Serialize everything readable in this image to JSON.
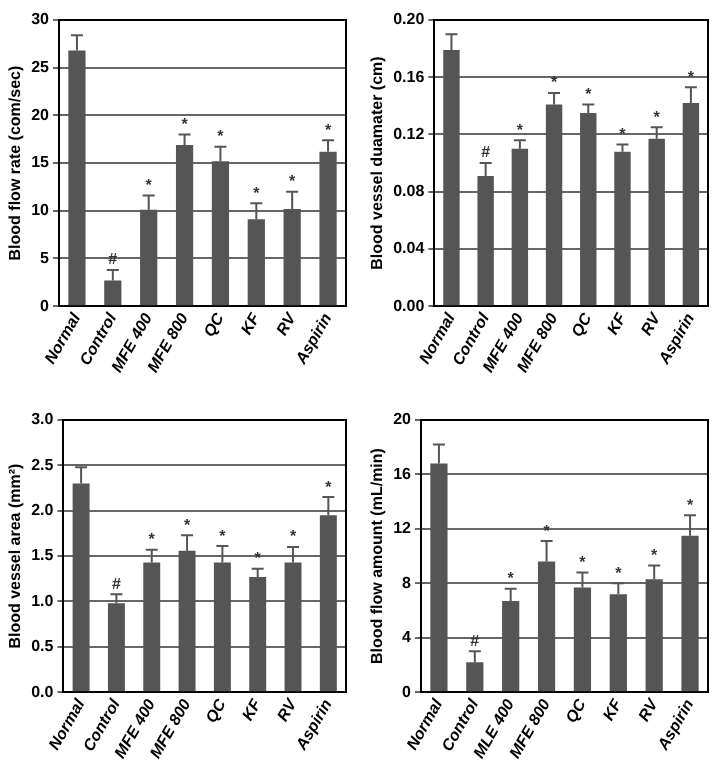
{
  "chart_data": [
    {
      "type": "bar",
      "ylabel": "Blood flow rate (com/sec)",
      "categories": [
        "Normal",
        "Control",
        "MFE 400",
        "MFE 800",
        "QC",
        "KF",
        "RV",
        "Aspirin"
      ],
      "values": [
        26.8,
        2.7,
        10.1,
        16.9,
        15.2,
        9.1,
        10.2,
        16.2
      ],
      "color": "#555555",
      "errors": [
        [
          26.8,
          28.4
        ],
        [
          2.7,
          3.8
        ],
        [
          10.1,
          11.6
        ],
        [
          16.9,
          18.0
        ],
        [
          15.2,
          16.7
        ],
        [
          9.1,
          10.8
        ],
        [
          10.2,
          12.0
        ],
        [
          16.2,
          17.4
        ]
      ],
      "ylim": [
        0,
        30
      ],
      "yticks": [
        0,
        5,
        10,
        15,
        20,
        25,
        30
      ],
      "grid": "y",
      "legend": false,
      "annotations": [
        {
          "text": "#",
          "x": "Control",
          "y": 3.8
        },
        {
          "text": "*",
          "x": "MFE 400",
          "y": 11.6
        },
        {
          "text": "*",
          "x": "MFE 800",
          "y": 18.0
        },
        {
          "text": "*",
          "x": "QC",
          "y": 16.7
        },
        {
          "text": "*",
          "x": "KF",
          "y": 10.8
        },
        {
          "text": "*",
          "x": "RV",
          "y": 12.0
        },
        {
          "text": "*",
          "x": "Aspirin",
          "y": 17.4
        }
      ]
    },
    {
      "type": "bar",
      "ylabel": "Blood vessel duamater (cm)",
      "categories": [
        "Normal",
        "Control",
        "MFE 400",
        "MFE 800",
        "QC",
        "KF",
        "RV",
        "Aspirin"
      ],
      "values": [
        0.179,
        0.091,
        0.11,
        0.141,
        0.135,
        0.108,
        0.117,
        0.142
      ],
      "color": "#555555",
      "errors": [
        [
          0.179,
          0.19
        ],
        [
          0.091,
          0.1
        ],
        [
          0.11,
          0.116
        ],
        [
          0.141,
          0.149
        ],
        [
          0.135,
          0.141
        ],
        [
          0.108,
          0.113
        ],
        [
          0.117,
          0.125
        ],
        [
          0.142,
          0.153
        ]
      ],
      "ylim": [
        0,
        0.2
      ],
      "yticks": [
        {
          "value": 0,
          "label": "0.00"
        },
        {
          "value": 0.04,
          "label": "0.04"
        },
        {
          "value": 0.08,
          "label": "0.08"
        },
        {
          "value": 0.12,
          "label": "0.12"
        },
        {
          "value": 0.16,
          "label": "0.16"
        },
        {
          "value": 0.2,
          "label": "0.20"
        }
      ],
      "grid": "y",
      "legend": false,
      "annotations": [
        {
          "text": "#",
          "x": "Control",
          "y": 0.1
        },
        {
          "text": "*",
          "x": "MFE 400",
          "y": 0.116
        },
        {
          "text": "*",
          "x": "MFE 800",
          "y": 0.149
        },
        {
          "text": "*",
          "x": "QC",
          "y": 0.141
        },
        {
          "text": "*",
          "x": "KF",
          "y": 0.113
        },
        {
          "text": "*",
          "x": "RV",
          "y": 0.125
        },
        {
          "text": "*",
          "x": "Aspirin",
          "y": 0.153
        }
      ]
    },
    {
      "type": "bar",
      "ylabel": "Blood vessel area (mm²)",
      "categories": [
        "Normal",
        "Control",
        "MFE 400",
        "MFE 800",
        "QC",
        "KF",
        "RV",
        "Aspirin"
      ],
      "values": [
        2.3,
        0.98,
        1.43,
        1.56,
        1.43,
        1.27,
        1.43,
        1.95
      ],
      "color": "#555555",
      "errors": [
        [
          2.3,
          2.48
        ],
        [
          0.98,
          1.08
        ],
        [
          1.43,
          1.57
        ],
        [
          1.56,
          1.73
        ],
        [
          1.43,
          1.61
        ],
        [
          1.27,
          1.36
        ],
        [
          1.43,
          1.6
        ],
        [
          1.95,
          2.15
        ]
      ],
      "ylim": [
        0,
        3
      ],
      "yticks": [
        {
          "value": 0,
          "label": "0.0"
        },
        {
          "value": 0.5,
          "label": "0.5"
        },
        {
          "value": 1,
          "label": "1.0"
        },
        {
          "value": 1.5,
          "label": "1.5"
        },
        {
          "value": 2,
          "label": "2.0"
        },
        {
          "value": 2.5,
          "label": "2.5"
        },
        {
          "value": 3,
          "label": "3.0"
        }
      ],
      "grid": "y",
      "legend": false,
      "annotations": [
        {
          "text": "#",
          "x": "Control",
          "y": 1.08
        },
        {
          "text": "*",
          "x": "MFE 400",
          "y": 1.57
        },
        {
          "text": "*",
          "x": "MFE 800",
          "y": 1.73
        },
        {
          "text": "*",
          "x": "QC",
          "y": 1.61
        },
        {
          "text": "*",
          "x": "KF",
          "y": 1.36
        },
        {
          "text": "*",
          "x": "RV",
          "y": 1.6
        },
        {
          "text": "*",
          "x": "Aspirin",
          "y": 2.15
        }
      ]
    },
    {
      "type": "bar",
      "ylabel": "Blood flow amount (mL/min)",
      "categories": [
        "Normal",
        "Control",
        "MLE 400",
        "MFE 800",
        "QC",
        "KF",
        "RV",
        "Aspirin"
      ],
      "values": [
        16.8,
        2.2,
        6.7,
        9.6,
        7.7,
        7.2,
        8.3,
        11.5
      ],
      "color": "#555555",
      "errors": [
        [
          16.8,
          18.2
        ],
        [
          2.2,
          3.0
        ],
        [
          6.7,
          7.6
        ],
        [
          9.6,
          11.1
        ],
        [
          7.7,
          8.8
        ],
        [
          7.2,
          8.0
        ],
        [
          8.3,
          9.3
        ],
        [
          11.5,
          13.0
        ]
      ],
      "ylim": [
        0,
        20
      ],
      "yticks": [
        0,
        4,
        8,
        12,
        16,
        20
      ],
      "grid": "y",
      "legend": false,
      "annotations": [
        {
          "text": "#",
          "x": "Control",
          "y": 3.0
        },
        {
          "text": "*",
          "x": "MLE 400",
          "y": 7.6
        },
        {
          "text": "*",
          "x": "MFE 800",
          "y": 11.1
        },
        {
          "text": "*",
          "x": "QC",
          "y": 8.8
        },
        {
          "text": "*",
          "x": "KF",
          "y": 8.0
        },
        {
          "text": "*",
          "x": "RV",
          "y": 9.3
        },
        {
          "text": "*",
          "x": "Aspirin",
          "y": 13.0
        }
      ]
    }
  ]
}
